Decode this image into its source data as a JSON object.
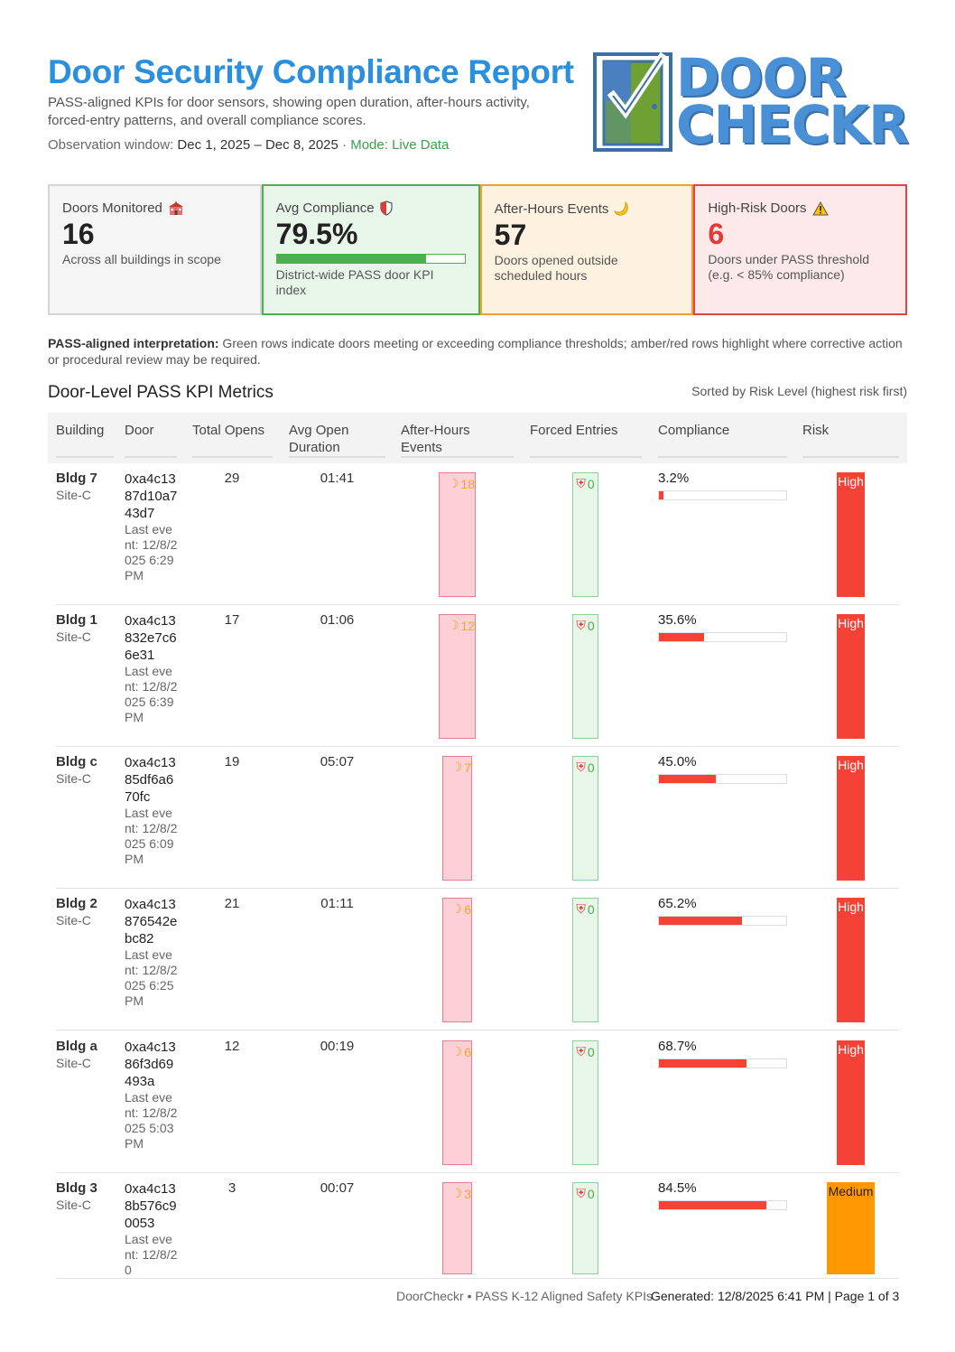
{
  "header": {
    "title": "Door Security Compliance Report",
    "subtitle": "PASS-aligned KPIs for door sensors, showing open duration, after-hours activity, forced-entry patterns, and overall compliance scores.",
    "window_label": "Observation window:",
    "window_dates": "Dec 1, 2025 – Dec 8, 2025",
    "mode_sep": " · ",
    "mode": "Mode: Live Data"
  },
  "logo": {
    "line1": "DOOR",
    "line2": "CHECKR"
  },
  "kpis": {
    "doors": {
      "label": "Doors Monitored",
      "icon": "school-icon",
      "value": "16",
      "note": "Across all buildings in scope"
    },
    "compliance": {
      "label": "Avg Compliance",
      "icon": "shield-icon",
      "value": "79.5%",
      "progress": 0.795,
      "note": "District-wide PASS door KPI index"
    },
    "after_hours": {
      "label": "After-Hours Events",
      "icon": "moon-icon",
      "value": "57",
      "note": "Doors opened outside scheduled hours"
    },
    "high_risk": {
      "label": "High-Risk Doors",
      "icon": "warning-icon",
      "value": "6",
      "note": "Doors under PASS threshold (e.g. < 85% compliance)"
    }
  },
  "interpretation": {
    "lead": "PASS-aligned interpretation:",
    "text": " Green rows indicate doors meeting or exceeding compliance thresholds; amber/red rows highlight where corrective action or procedural review may be required."
  },
  "table": {
    "title": "Door-Level PASS KPI Metrics",
    "sort_note": "Sorted by Risk Level (highest risk first)",
    "columns": {
      "building": "Building",
      "door": "Door",
      "opens": "Total Opens",
      "duration": "Avg Open Duration",
      "after_hours": "After-Hours Events",
      "forced": "Forced Entries",
      "compliance": "Compliance",
      "risk": "Risk"
    },
    "rows": [
      {
        "building": "Bldg 7",
        "site": "Site-C",
        "door": "0xa4c1387d10a743d7",
        "last_event": "Last event: 12/8/2025 6:29 PM",
        "opens": "29",
        "duration": "01:41",
        "after_hours": "18",
        "forced": "0",
        "compliance": "3.2%",
        "compliance_value": 3.2,
        "risk": "High"
      },
      {
        "building": "Bldg 1",
        "site": "Site-C",
        "door": "0xa4c13832e7c66e31",
        "last_event": "Last event: 12/8/2025 6:39 PM",
        "opens": "17",
        "duration": "01:06",
        "after_hours": "12",
        "forced": "0",
        "compliance": "35.6%",
        "compliance_value": 35.6,
        "risk": "High"
      },
      {
        "building": "Bldg c",
        "site": "Site-C",
        "door": "0xa4c1385df6a670fc",
        "last_event": "Last event: 12/8/2025 6:09 PM",
        "opens": "19",
        "duration": "05:07",
        "after_hours": "7",
        "forced": "0",
        "compliance": "45.0%",
        "compliance_value": 45.0,
        "risk": "High"
      },
      {
        "building": "Bldg 2",
        "site": "Site-C",
        "door": "0xa4c13876542ebc82",
        "last_event": "Last event: 12/8/2025 6:25 PM",
        "opens": "21",
        "duration": "01:11",
        "after_hours": "6",
        "forced": "0",
        "compliance": "65.2%",
        "compliance_value": 65.2,
        "risk": "High"
      },
      {
        "building": "Bldg a",
        "site": "Site-C",
        "door": "0xa4c1386f3d69493a",
        "last_event": "Last event: 12/8/2025 5:03 PM",
        "opens": "12",
        "duration": "00:19",
        "after_hours": "6",
        "forced": "0",
        "compliance": "68.7%",
        "compliance_value": 68.7,
        "risk": "High"
      },
      {
        "building": "Bldg 3",
        "site": "Site-C",
        "door": "0xa4c138b576c90053",
        "last_event": "Last event: 12/8/20",
        "opens": "3",
        "duration": "00:07",
        "after_hours": "3",
        "forced": "0",
        "compliance": "84.5%",
        "compliance_value": 84.5,
        "risk": "Medium"
      }
    ]
  },
  "footer": {
    "left": "DoorCheckr • PASS K-12 Aligned Safety KPIs",
    "right": "Generated: 12/8/2025 6:41 PM | Page 1 of 3"
  },
  "colors": {
    "title": "#2b8fe0",
    "good": "#4caf50",
    "warn": "#ff9800",
    "bad": "#f44336",
    "after_hours": "#f5a623"
  }
}
